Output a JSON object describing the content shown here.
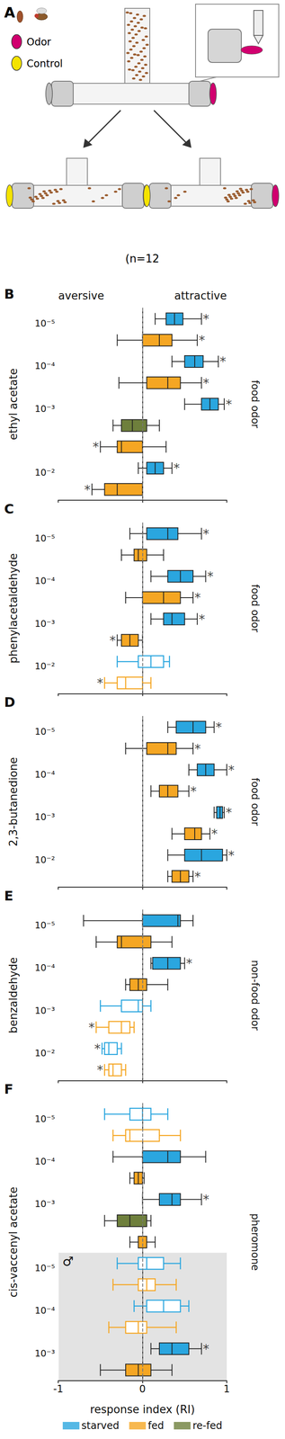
{
  "panel_a": {
    "label": "A",
    "legend": [
      {
        "label": "Odor",
        "color": "#d1006f"
      },
      {
        "label": "Control",
        "color": "#f4e300"
      }
    ],
    "note": "(n=12"
  },
  "chart_data": [
    {
      "type": "boxplot",
      "panel": "B",
      "ylabel": "ethyl acetate",
      "side_label": "food odor",
      "annotations": [
        "aversive",
        "attractive"
      ],
      "categories": [
        "10⁻⁵",
        null,
        "10⁻⁴",
        null,
        "10⁻³",
        null,
        null,
        "10⁻²",
        null
      ],
      "xlim": [
        -1,
        1
      ],
      "xticks": [
        -1,
        0,
        1
      ],
      "reference_line": 0,
      "grid": false,
      "tick_labels": "y",
      "series": [
        {
          "name": "starved",
          "color": "#2aa6df",
          "values": [
            [
              0.15,
              0.28,
              0.38,
              0.48,
              0.7
            ],
            null,
            [
              0.35,
              0.5,
              0.62,
              0.72,
              0.9
            ],
            null,
            [
              0.5,
              0.7,
              0.8,
              0.9,
              0.97
            ],
            null,
            null,
            [
              -0.05,
              0.05,
              0.15,
              0.25,
              0.35
            ],
            null
          ],
          "filled": [
            true,
            null,
            true,
            null,
            true,
            null,
            null,
            true,
            null
          ],
          "marks": [
            "*",
            null,
            "*",
            null,
            "*",
            null,
            null,
            "*",
            null
          ]
        },
        {
          "name": "fed",
          "color": "#f5a623",
          "values": [
            null,
            [
              -0.3,
              0.0,
              0.2,
              0.35,
              0.65
            ],
            null,
            [
              -0.28,
              0.05,
              0.3,
              0.45,
              0.7
            ],
            null,
            null,
            [
              -0.5,
              -0.3,
              -0.25,
              0.0,
              0.28
            ],
            null,
            [
              -0.6,
              -0.45,
              -0.3,
              0.0,
              0.0
            ]
          ],
          "filled": [
            null,
            true,
            null,
            true,
            null,
            null,
            true,
            null,
            true
          ],
          "marks": [
            null,
            "*",
            null,
            "*",
            null,
            null,
            "*",
            null,
            "*"
          ]
        },
        {
          "name": "re-fed",
          "color": "#6e7f3c",
          "values": [
            null,
            null,
            null,
            null,
            null,
            [
              -0.35,
              -0.25,
              -0.12,
              0.05,
              0.2
            ],
            null,
            null,
            null
          ],
          "filled": [
            null,
            null,
            null,
            null,
            null,
            true,
            null,
            null,
            null
          ],
          "marks": [
            null,
            null,
            null,
            null,
            null,
            null,
            null,
            null,
            null
          ]
        }
      ]
    },
    {
      "type": "boxplot",
      "panel": "C",
      "ylabel": "phenylacetaldehyde",
      "side_label": "food odor",
      "categories": [
        "10⁻⁵",
        null,
        "10⁻⁴",
        null,
        "10⁻³",
        null,
        "10⁻²",
        null
      ],
      "xlim": [
        -1,
        1
      ],
      "xticks": [
        -1,
        0,
        1
      ],
      "reference_line": 0,
      "grid": false,
      "tick_labels": "y",
      "series": [
        {
          "name": "starved",
          "color": "#2aa6df",
          "values": [
            [
              -0.15,
              0.05,
              0.3,
              0.42,
              0.7
            ],
            null,
            [
              0.1,
              0.3,
              0.45,
              0.6,
              0.75
            ],
            null,
            [
              0.1,
              0.25,
              0.35,
              0.5,
              0.65
            ],
            null,
            [
              -0.3,
              -0.05,
              0.1,
              0.25,
              0.32
            ],
            null
          ],
          "filled": [
            true,
            null,
            true,
            null,
            true,
            null,
            false,
            null
          ],
          "marks": [
            "*",
            null,
            "*",
            null,
            "*",
            null,
            null,
            null
          ]
        },
        {
          "name": "fed",
          "color": "#f5a623",
          "values": [
            null,
            [
              -0.25,
              -0.1,
              -0.05,
              0.05,
              0.25
            ],
            null,
            [
              -0.2,
              0.0,
              0.25,
              0.45,
              0.6
            ],
            null,
            [
              -0.3,
              -0.25,
              -0.15,
              -0.05,
              0.0
            ],
            null,
            [
              -0.45,
              -0.3,
              -0.2,
              0.0,
              0.1
            ]
          ],
          "filled": [
            null,
            true,
            null,
            true,
            null,
            true,
            null,
            false
          ],
          "marks": [
            null,
            null,
            null,
            "*",
            null,
            "*",
            null,
            "*"
          ]
        }
      ]
    },
    {
      "type": "boxplot",
      "panel": "D",
      "ylabel": "2,3-butanedione",
      "side_label": "food odor",
      "categories": [
        "10⁻⁵",
        null,
        "10⁻⁴",
        null,
        "10⁻³",
        null,
        "10⁻²",
        null
      ],
      "xlim": [
        -1,
        1
      ],
      "xticks": [
        -1,
        0,
        1
      ],
      "reference_line": 0,
      "grid": false,
      "tick_labels": "y",
      "series": [
        {
          "name": "starved",
          "color": "#2aa6df",
          "values": [
            [
              0.3,
              0.4,
              0.6,
              0.75,
              0.85
            ],
            null,
            [
              0.55,
              0.65,
              0.75,
              0.85,
              1.0
            ],
            null,
            [
              0.85,
              0.88,
              0.92,
              0.95,
              0.97
            ],
            null,
            [
              0.3,
              0.5,
              0.7,
              0.95,
              1.0
            ],
            null
          ],
          "filled": [
            true,
            null,
            true,
            null,
            true,
            null,
            true,
            null
          ],
          "marks": [
            "*",
            null,
            "*",
            null,
            "*",
            null,
            "*",
            null
          ]
        },
        {
          "name": "fed",
          "color": "#f5a623",
          "values": [
            null,
            [
              -0.2,
              0.05,
              0.3,
              0.4,
              0.6
            ],
            null,
            [
              0.1,
              0.2,
              0.3,
              0.42,
              0.55
            ],
            null,
            [
              0.35,
              0.5,
              0.62,
              0.7,
              0.8
            ],
            null,
            [
              0.3,
              0.35,
              0.45,
              0.55,
              0.6
            ]
          ],
          "filled": [
            null,
            true,
            null,
            true,
            null,
            true,
            null,
            true
          ],
          "marks": [
            null,
            "*",
            null,
            "*",
            null,
            "*",
            null,
            "*"
          ]
        }
      ]
    },
    {
      "type": "boxplot",
      "panel": "E",
      "ylabel": "benzaldehyde",
      "side_label": "non-food odor",
      "categories": [
        "10⁻⁵",
        null,
        "10⁻⁴",
        null,
        "10⁻³",
        null,
        "10⁻²",
        null
      ],
      "xlim": [
        -1,
        1
      ],
      "xticks": [
        -1,
        0,
        1
      ],
      "reference_line": 0,
      "grid": false,
      "tick_labels": "y",
      "series": [
        {
          "name": "starved",
          "color": "#2aa6df",
          "values": [
            [
              -0.7,
              0.0,
              0.42,
              0.45,
              0.6
            ],
            null,
            [
              0.1,
              0.12,
              0.3,
              0.45,
              0.5
            ],
            null,
            [
              -0.5,
              -0.25,
              -0.05,
              0.0,
              0.1
            ],
            null,
            [
              -0.48,
              -0.45,
              -0.4,
              -0.3,
              -0.25
            ],
            null
          ],
          "filled": [
            true,
            null,
            true,
            null,
            false,
            null,
            false,
            null
          ],
          "marks": [
            null,
            null,
            "*",
            null,
            null,
            null,
            "*",
            null
          ]
        },
        {
          "name": "fed",
          "color": "#f5a623",
          "values": [
            null,
            [
              -0.55,
              -0.3,
              -0.25,
              0.1,
              0.35
            ],
            null,
            [
              -0.2,
              -0.15,
              -0.05,
              0.05,
              0.3
            ],
            null,
            [
              -0.55,
              -0.4,
              -0.25,
              -0.15,
              -0.1
            ],
            null,
            [
              -0.45,
              -0.4,
              -0.35,
              -0.25,
              -0.2
            ]
          ],
          "filled": [
            null,
            true,
            null,
            true,
            null,
            false,
            null,
            false
          ],
          "marks": [
            null,
            null,
            null,
            null,
            null,
            "*",
            null,
            "*"
          ]
        }
      ]
    },
    {
      "type": "boxplot",
      "panel": "F",
      "ylabel": "cis-vaccenyl acetate",
      "side_label": "pheromone",
      "xlabel": "response index (RI)",
      "legend": "bottom",
      "categories": [
        "10⁻⁵",
        null,
        "10⁻⁴",
        null,
        "10⁻³",
        null,
        null,
        "10⁻⁵",
        null,
        "10⁻⁴",
        null,
        "10⁻³",
        null
      ],
      "row_groups": [
        null,
        null,
        null,
        null,
        null,
        null,
        null,
        "♂",
        "♂",
        "♂",
        "♂",
        "♂",
        "♂"
      ],
      "xlim": [
        -1,
        1
      ],
      "xticks": [
        -1,
        0,
        1
      ],
      "reference_line": 0,
      "grid": false,
      "series": [
        {
          "name": "starved",
          "color": "#2aa6df",
          "values": [
            [
              -0.45,
              -0.15,
              0.0,
              0.1,
              0.3
            ],
            null,
            [
              -0.35,
              0.0,
              0.3,
              0.45,
              0.75
            ],
            null,
            [
              0.0,
              0.2,
              0.35,
              0.45,
              0.7
            ],
            null,
            null,
            [
              -0.3,
              -0.05,
              0.05,
              0.25,
              0.45
            ],
            null,
            [
              -0.1,
              0.05,
              0.25,
              0.45,
              0.55
            ],
            null,
            [
              0.1,
              0.2,
              0.35,
              0.55,
              0.7
            ],
            null
          ],
          "filled": [
            false,
            null,
            true,
            null,
            true,
            null,
            null,
            false,
            null,
            false,
            null,
            true,
            null
          ],
          "marks": [
            null,
            null,
            null,
            null,
            "*",
            null,
            null,
            null,
            null,
            null,
            null,
            "*",
            null
          ]
        },
        {
          "name": "fed",
          "color": "#f5a623",
          "values": [
            null,
            [
              -0.35,
              -0.2,
              -0.15,
              0.2,
              0.45
            ],
            null,
            [
              -0.15,
              -0.1,
              -0.05,
              0.0,
              0.02
            ],
            null,
            null,
            [
              -0.15,
              -0.05,
              -0.05,
              0.05,
              0.15
            ],
            null,
            [
              -0.35,
              -0.05,
              0.05,
              0.15,
              0.4
            ],
            null,
            [
              -0.4,
              -0.2,
              -0.05,
              0.05,
              0.4
            ],
            null,
            [
              -0.5,
              -0.2,
              -0.05,
              0.1,
              0.35
            ]
          ],
          "filled": [
            null,
            false,
            null,
            true,
            null,
            null,
            true,
            null,
            false,
            null,
            false,
            null,
            true
          ],
          "marks": [
            null,
            null,
            null,
            null,
            null,
            null,
            null,
            null,
            null,
            null,
            null,
            null,
            null
          ]
        },
        {
          "name": "re-fed",
          "color": "#6e7f3c",
          "values": [
            null,
            null,
            null,
            null,
            null,
            [
              -0.45,
              -0.3,
              -0.15,
              0.05,
              0.1
            ],
            null,
            null,
            null,
            null,
            null,
            null,
            null
          ],
          "filled": [
            null,
            null,
            null,
            null,
            null,
            true,
            null,
            null,
            null,
            null,
            null,
            null,
            null
          ],
          "marks": [
            null,
            null,
            null,
            null,
            null,
            null,
            null,
            null,
            null,
            null,
            null,
            null,
            null
          ]
        }
      ]
    }
  ]
}
